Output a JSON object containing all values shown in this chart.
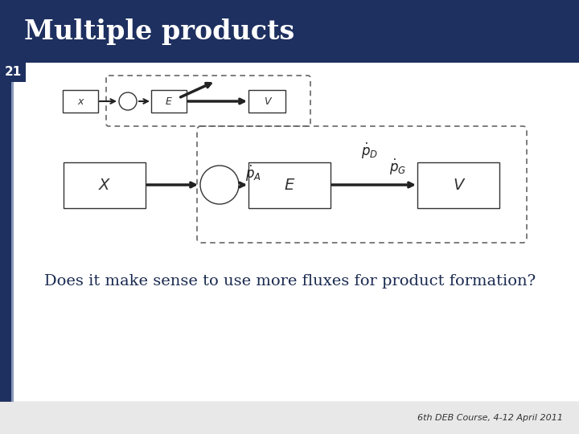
{
  "title": "Multiple products",
  "slide_number": "21",
  "title_bg_color": "#1e3060",
  "title_text_color": "#ffffff",
  "slide_bg_color": "#ffffff",
  "footer_bg_color": "#e8e8e8",
  "footer_text": "6th DEB Course, 4-12 April 2011",
  "question_text": "Does it make sense to use more fluxes for product formation?",
  "left_bar_color": "#1e3060",
  "accent_color": "#8899bb"
}
